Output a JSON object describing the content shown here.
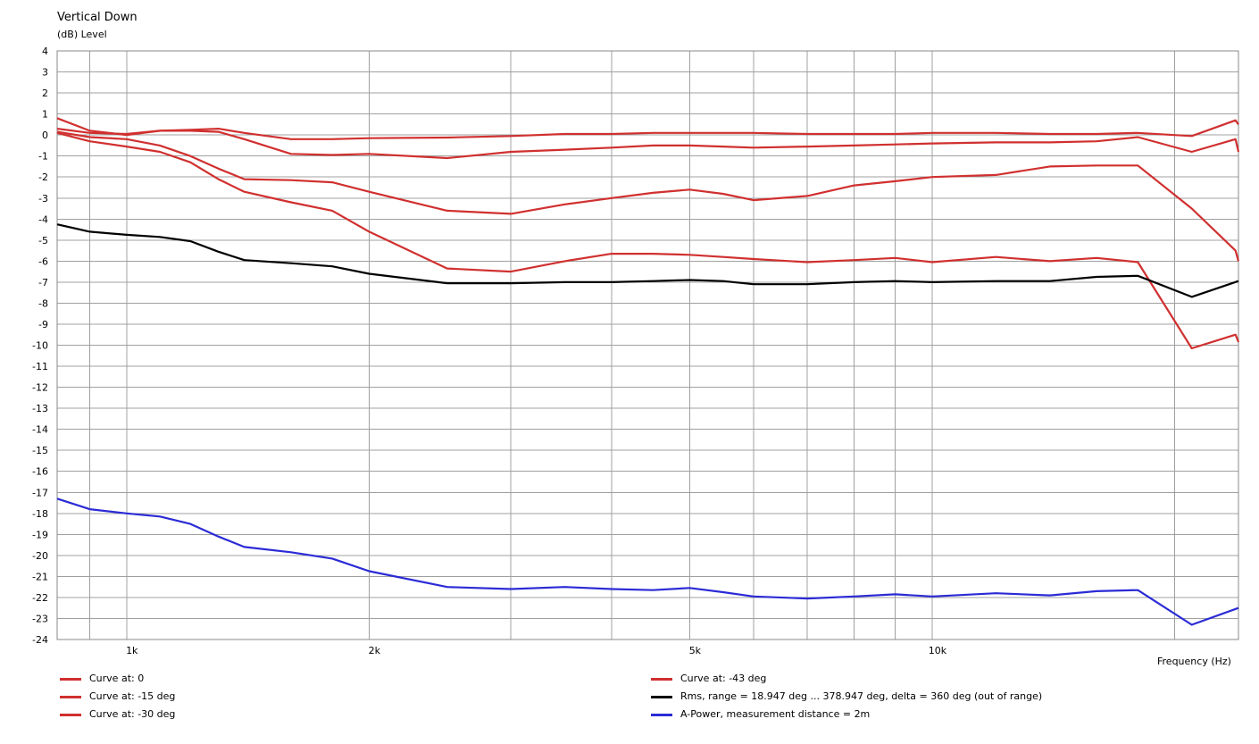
{
  "chart_data": {
    "type": "line",
    "title": "Vertical Down",
    "ylabel": "(dB)  Level",
    "xlabel": "Frequency  (Hz)",
    "xscale": "log",
    "xlim": [
      820,
      24000
    ],
    "ylim": [
      -24,
      4
    ],
    "grid": true,
    "y_ticks": [
      4,
      3,
      2,
      1,
      0,
      -1,
      -2,
      -3,
      -4,
      -5,
      -6,
      -7,
      -8,
      -9,
      -10,
      -11,
      -12,
      -13,
      -14,
      -15,
      -16,
      -17,
      -18,
      -19,
      -20,
      -21,
      -22,
      -23,
      -24
    ],
    "x_tick_labels": [
      {
        "value": 1000,
        "label": "1k"
      },
      {
        "value": 2000,
        "label": "2k"
      },
      {
        "value": 5000,
        "label": "5k"
      },
      {
        "value": 10000,
        "label": "10k"
      }
    ],
    "series": [
      {
        "name": "Curve at: 0",
        "color": "#d0302f",
        "x": [
          820,
          900,
          1000,
          1100,
          1200,
          1300,
          1400,
          1600,
          1800,
          2000,
          2500,
          3000,
          3500,
          4000,
          4500,
          5000,
          5500,
          6000,
          7000,
          8000,
          9000,
          10000,
          12000,
          14000,
          16000,
          18000,
          21000,
          23800,
          24000
        ],
        "y": [
          0.3,
          0.1,
          0.05,
          0.2,
          0.25,
          0.3,
          0.1,
          -0.2,
          -0.2,
          -0.15,
          -0.12,
          -0.05,
          0.05,
          0.05,
          0.1,
          0.1,
          0.1,
          0.1,
          0.05,
          0.05,
          0.05,
          0.1,
          0.1,
          0.05,
          0.05,
          0.1,
          -0.05,
          0.7,
          0.5
        ]
      },
      {
        "name": "Curve at: -15 deg",
        "color": "#d0302f",
        "x": [
          820,
          900,
          1000,
          1100,
          1200,
          1300,
          1400,
          1600,
          1800,
          2000,
          2500,
          3000,
          3500,
          4000,
          4500,
          5000,
          5500,
          6000,
          7000,
          8000,
          9000,
          10000,
          12000,
          14000,
          16000,
          18000,
          21000,
          23800,
          24000
        ],
        "y": [
          0.8,
          0.2,
          0.0,
          0.2,
          0.2,
          0.15,
          -0.2,
          -0.9,
          -0.95,
          -0.9,
          -1.1,
          -0.8,
          -0.7,
          -0.6,
          -0.5,
          -0.5,
          -0.55,
          -0.6,
          -0.55,
          -0.5,
          -0.45,
          -0.4,
          -0.35,
          -0.35,
          -0.3,
          -0.1,
          -0.8,
          -0.2,
          -0.8
        ]
      },
      {
        "name": "Curve at: -30 deg",
        "color": "#d0302f",
        "x": [
          820,
          900,
          1000,
          1100,
          1200,
          1300,
          1400,
          1600,
          1800,
          2000,
          2500,
          3000,
          3500,
          4000,
          4500,
          5000,
          5500,
          6000,
          7000,
          8000,
          9000,
          10000,
          12000,
          14000,
          16000,
          18000,
          21000,
          23800,
          24000
        ],
        "y": [
          0.15,
          -0.1,
          -0.2,
          -0.5,
          -1.0,
          -1.6,
          -2.1,
          -2.15,
          -2.25,
          -2.7,
          -3.6,
          -3.75,
          -3.3,
          -3.0,
          -2.75,
          -2.6,
          -2.8,
          -3.1,
          -2.9,
          -2.4,
          -2.2,
          -2.0,
          -1.9,
          -1.5,
          -1.45,
          -1.45,
          -3.5,
          -5.5,
          -6.0
        ]
      },
      {
        "name": "Curve at: -43 deg",
        "color": "#d0302f",
        "x": [
          820,
          900,
          1000,
          1100,
          1200,
          1300,
          1400,
          1600,
          1800,
          2000,
          2500,
          3000,
          3500,
          4000,
          4500,
          5000,
          5500,
          6000,
          7000,
          8000,
          9000,
          10000,
          12000,
          14000,
          16000,
          18000,
          21000,
          23800,
          24000
        ],
        "y": [
          0.1,
          -0.3,
          -0.55,
          -0.8,
          -1.3,
          -2.1,
          -2.7,
          -3.2,
          -3.6,
          -4.6,
          -6.35,
          -6.5,
          -6.0,
          -5.65,
          -5.65,
          -5.7,
          -5.8,
          -5.9,
          -6.05,
          -5.95,
          -5.85,
          -6.05,
          -5.8,
          -6.0,
          -5.85,
          -6.05,
          -10.15,
          -9.5,
          -9.85
        ]
      },
      {
        "name": "Rms, range = 18.947 deg ... 378.947 deg, delta = 360 deg (out of range)",
        "color": "#000000",
        "x": [
          820,
          900,
          1000,
          1100,
          1200,
          1300,
          1400,
          1600,
          1800,
          2000,
          2500,
          3000,
          3500,
          4000,
          4500,
          5000,
          5500,
          6000,
          7000,
          8000,
          9000,
          10000,
          12000,
          14000,
          16000,
          18000,
          21000,
          24000
        ],
        "y": [
          -4.25,
          -4.6,
          -4.75,
          -4.85,
          -5.05,
          -5.55,
          -5.95,
          -6.1,
          -6.25,
          -6.6,
          -7.05,
          -7.05,
          -7.0,
          -7.0,
          -6.95,
          -6.9,
          -6.95,
          -7.1,
          -7.1,
          -7.0,
          -6.95,
          -7.0,
          -6.95,
          -6.95,
          -6.75,
          -6.7,
          -7.7,
          -6.95
        ]
      },
      {
        "name": "A-Power, measurement distance = 2m",
        "color": "#2b2bd6",
        "x": [
          820,
          900,
          1000,
          1100,
          1200,
          1300,
          1400,
          1600,
          1800,
          2000,
          2500,
          3000,
          3500,
          4000,
          4500,
          5000,
          5500,
          6000,
          7000,
          8000,
          9000,
          10000,
          12000,
          14000,
          16000,
          18000,
          21000,
          24000
        ],
        "y": [
          -17.3,
          -17.8,
          -18.0,
          -18.15,
          -18.5,
          -19.1,
          -19.6,
          -19.85,
          -20.15,
          -20.75,
          -21.5,
          -21.6,
          -21.5,
          -21.6,
          -21.65,
          -21.55,
          -21.75,
          -21.95,
          -22.05,
          -21.95,
          -21.85,
          -21.95,
          -21.8,
          -21.9,
          -21.7,
          -21.65,
          -23.3,
          -22.5
        ]
      }
    ],
    "legend": {
      "placement": "bottom",
      "items": [
        {
          "label": "Curve at: 0",
          "color": "#d0302f"
        },
        {
          "label": "Curve at: -15 deg",
          "color": "#d0302f"
        },
        {
          "label": "Curve at: -30 deg",
          "color": "#d0302f"
        },
        {
          "label": "Curve at: -43 deg",
          "color": "#d0302f"
        },
        {
          "label": "Rms, range = 18.947 deg ... 378.947 deg, delta = 360 deg (out of range)",
          "color": "#000000"
        },
        {
          "label": "A-Power, measurement distance = 2m",
          "color": "#2b2bd6"
        }
      ]
    }
  }
}
